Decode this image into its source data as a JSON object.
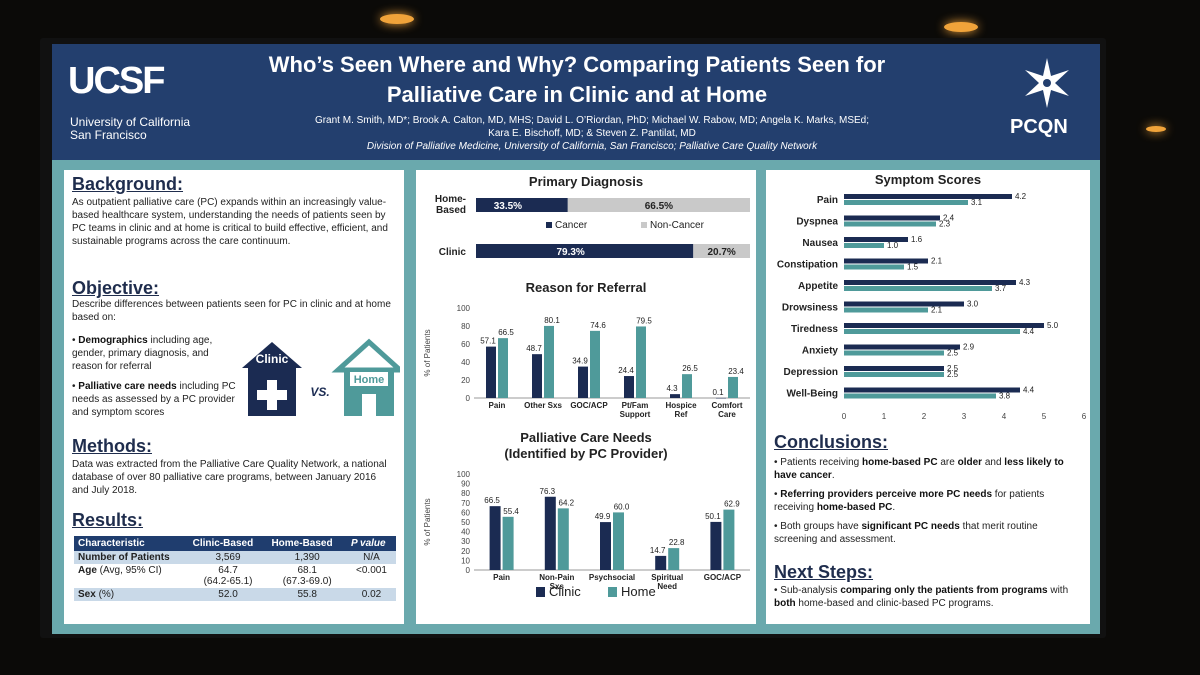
{
  "header": {
    "logo_text": "UCSF",
    "logo_sub1": "University of California",
    "logo_sub2": "San Francisco",
    "title_line1": "Who’s Seen Where and Why? Comparing Patients Seen for",
    "title_line2": "Palliative Care in Clinic and at Home",
    "authors_line1": "Grant M. Smith, MD*; Brook A. Calton, MD, MHS; David L. O’Riordan, PhD; Michael W. Rabow, MD; Angela K. Marks, MSEd;",
    "authors_line2": "Kara E. Bischoff, MD; & Steven Z. Pantilat, MD",
    "affiliation": "Division of Palliative Medicine, University of California, San Francisco; Palliative Care Quality Network",
    "pcqn_text": "PCQN"
  },
  "background": {
    "title": "Background:",
    "text": "As outpatient palliative care (PC) expands within an increasingly value-based healthcare system, understanding the needs of patients seen by PC teams in clinic and at home is critical to build effective, efficient, and sustainable programs across the care continuum."
  },
  "objective": {
    "title": "Objective:",
    "text": "Describe differences between patients seen for PC in clinic and at home based on:",
    "bullet1_bold": "Demographics",
    "bullet1_rest": " including age, gender, primary diagnosis, and reason for referral",
    "bullet2_bold": "Palliative care needs",
    "bullet2_rest": " including PC needs as assessed by a PC provider and symptom scores",
    "clinic_label": "Clinic",
    "vs_label": "VS.",
    "home_label": "Home"
  },
  "methods": {
    "title": "Methods:",
    "text": "Data was extracted from the Palliative Care Quality Network, a national database of over 80 palliative care programs, between January 2016 and July 2018."
  },
  "results": {
    "title": "Results:",
    "headers": [
      "Characteristic",
      "Clinic-Based",
      "Home-Based",
      "P value"
    ],
    "rows": [
      {
        "c": "Number of Patients",
        "clinic": "3,569",
        "clinic2": "",
        "home": "1,390",
        "home2": "",
        "p": "N/A"
      },
      {
        "c": "Age",
        "c_small": " (Avg, 95% CI)",
        "clinic": "64.7",
        "clinic2": "(64.2-65.1)",
        "home": "68.1",
        "home2": "(67.3-69.0)",
        "p": "<0.001"
      },
      {
        "c": "Sex",
        "c_small": " (%)",
        "clinic": "52.0",
        "clinic2": "",
        "home": "55.8",
        "home2": "",
        "p": "0.02"
      }
    ]
  },
  "colors": {
    "clinic": "#1b2b52",
    "home": "#4f9a9a",
    "cancer": "#1b2b52",
    "noncancer": "#c9c9c9",
    "header": "#233f6e"
  },
  "chart_data": [
    {
      "type": "bar",
      "title": "Primary Diagnosis",
      "orientation": "horizontal-stacked",
      "categories": [
        "Home-Based",
        "Clinic"
      ],
      "series": [
        {
          "name": "Cancer",
          "values": [
            33.5,
            79.3
          ],
          "labels": [
            "33.5%",
            "79.3%"
          ]
        },
        {
          "name": "Non-Cancer",
          "values": [
            66.5,
            20.7
          ],
          "labels": [
            "66.5%",
            "20.7%"
          ]
        }
      ]
    },
    {
      "type": "bar",
      "title": "Reason for Referral",
      "ylabel": "% of Patients",
      "ylim": [
        0,
        100
      ],
      "yticks": [
        "0",
        "20",
        "40",
        "60",
        "80",
        "100"
      ],
      "categories": [
        "Pain",
        "Other Sxs",
        "GOC/ACP",
        "Pt/Fam Support",
        "Hospice Ref",
        "Comfort Care"
      ],
      "category_lines": [
        [
          "Pain"
        ],
        [
          "Other Sxs"
        ],
        [
          "GOC/ACP"
        ],
        [
          "Pt/Fam",
          "Support"
        ],
        [
          "Hospice",
          "Ref"
        ],
        [
          "Comfort",
          "Care"
        ]
      ],
      "series": [
        {
          "name": "Clinic",
          "values": [
            57.1,
            48.7,
            34.9,
            24.4,
            4.3,
            0.1
          ],
          "labels": [
            "57.1",
            "48.7",
            "34.9",
            "24.4",
            "4.3",
            "0.1"
          ]
        },
        {
          "name": "Home",
          "values": [
            66.5,
            80.1,
            74.6,
            79.5,
            26.5,
            23.4
          ],
          "labels": [
            "66.5",
            "80.1",
            "74.6",
            "79.5",
            "26.5",
            "23.4"
          ]
        }
      ]
    },
    {
      "type": "bar",
      "title": "Palliative Care Needs",
      "subtitle": "(Identified by PC Provider)",
      "ylabel": "% of Patients",
      "ylim": [
        0,
        100
      ],
      "yticks": [
        "0",
        "10",
        "20",
        "30",
        "40",
        "50",
        "60",
        "70",
        "80",
        "90",
        "100"
      ],
      "categories": [
        "Pain",
        "Non-Pain Sxs",
        "Psychsocial",
        "Spiritual Need",
        "GOC/ACP"
      ],
      "category_lines": [
        [
          "Pain"
        ],
        [
          "Non-Pain",
          "Sxs"
        ],
        [
          "Psychsocial"
        ],
        [
          "Spiritual",
          "Need"
        ],
        [
          "GOC/ACP"
        ]
      ],
      "series": [
        {
          "name": "Clinic",
          "values": [
            66.5,
            76.3,
            49.9,
            14.7,
            50.1
          ],
          "labels": [
            "66.5",
            "76.3",
            "49.9",
            "14.7",
            "50.1"
          ]
        },
        {
          "name": "Home",
          "values": [
            55.4,
            64.2,
            60.0,
            22.8,
            62.9
          ],
          "labels": [
            "55.4",
            "64.2",
            "60.0",
            "22.8",
            "62.9"
          ]
        }
      ],
      "legend": [
        "Clinic",
        "Home"
      ]
    },
    {
      "type": "bar",
      "title": "Symptom Scores",
      "orientation": "horizontal",
      "xlim": [
        0,
        6
      ],
      "xticks": [
        "0",
        "1",
        "2",
        "3",
        "4",
        "5",
        "6"
      ],
      "categories": [
        "Pain",
        "Dyspnea",
        "Nausea",
        "Constipation",
        "Appetite",
        "Drowsiness",
        "Tiredness",
        "Anxiety",
        "Depression",
        "Well-Being"
      ],
      "series": [
        {
          "name": "Clinic",
          "values": [
            4.2,
            2.4,
            1.6,
            2.1,
            4.3,
            3.0,
            5.0,
            2.9,
            2.5,
            4.4
          ],
          "labels": [
            "4.2",
            "2.4",
            "1.6",
            "2.1",
            "4.3",
            "3.0",
            "5.0",
            "2.9",
            "2.5",
            "4.4"
          ]
        },
        {
          "name": "Home",
          "values": [
            3.1,
            2.3,
            1.0,
            1.5,
            3.7,
            2.1,
            4.4,
            2.5,
            2.5,
            3.8
          ],
          "labels": [
            "3.1",
            "2.3",
            "1.0",
            "1.5",
            "3.7",
            "2.1",
            "4.4",
            "2.5",
            "2.5",
            "3.8"
          ]
        }
      ]
    }
  ],
  "conclusions": {
    "title": "Conclusions:",
    "b1_pre": "Patients receiving ",
    "b1_bold1": "home-based PC",
    "b1_mid": " are ",
    "b1_bold2": "older",
    "b1_mid2": " and ",
    "b1_bold3": "less likely to have cancer",
    "b1_end": ".",
    "b2_bold1": "Referring providers perceive more PC needs",
    "b2_mid": " for patients receiving ",
    "b2_bold2": "home-based PC",
    "b2_end": ".",
    "b3_pre": "Both groups have ",
    "b3_bold": "significant PC needs",
    "b3_end": " that merit routine screening and assessment."
  },
  "next_steps": {
    "title": "Next Steps:",
    "pre": "Sub-analysis ",
    "bold1": "comparing only the patients from programs",
    "mid": " with ",
    "bold2": "both",
    "end": " home-based and clinic-based PC programs."
  }
}
